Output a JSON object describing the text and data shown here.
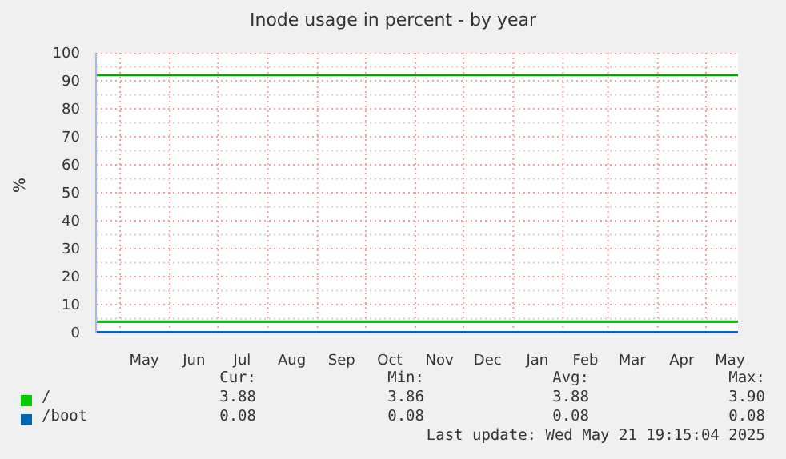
{
  "chart_data": {
    "type": "line",
    "title": "Inode usage in percent - by year",
    "ylabel": "%",
    "x": [
      "2024-04-16",
      "2025-05-21"
    ],
    "series": [
      {
        "name": "/",
        "color": "#00cc00",
        "values": [
          3.88,
          3.88
        ]
      },
      {
        "name": "/boot",
        "color": "#0066b3",
        "values": [
          0.08,
          0.08
        ]
      }
    ],
    "xlim": [
      "2024-04-16",
      "2025-05-21"
    ],
    "xticks": [
      {
        "value": "2024-05-01",
        "label": null
      },
      {
        "value": "2024-05-16",
        "label": "May"
      },
      {
        "value": "2024-06-01",
        "label": null
      },
      {
        "value": "2024-06-16",
        "label": "Jun"
      },
      {
        "value": "2024-07-01",
        "label": null
      },
      {
        "value": "2024-07-16",
        "label": "Jul"
      },
      {
        "value": "2024-08-01",
        "label": null
      },
      {
        "value": "2024-08-16",
        "label": "Aug"
      },
      {
        "value": "2024-09-01",
        "label": null
      },
      {
        "value": "2024-09-16",
        "label": "Sep"
      },
      {
        "value": "2024-10-01",
        "label": null
      },
      {
        "value": "2024-10-16",
        "label": "Oct"
      },
      {
        "value": "2024-11-01",
        "label": null
      },
      {
        "value": "2024-11-16",
        "label": "Nov"
      },
      {
        "value": "2024-12-01",
        "label": null
      },
      {
        "value": "2024-12-16",
        "label": "Dec"
      },
      {
        "value": "2025-01-01",
        "label": null
      },
      {
        "value": "2025-01-16",
        "label": "Jan"
      },
      {
        "value": "2025-02-01",
        "label": null
      },
      {
        "value": "2025-02-15",
        "label": "Feb"
      },
      {
        "value": "2025-03-01",
        "label": null
      },
      {
        "value": "2025-03-16",
        "label": "Mar"
      },
      {
        "value": "2025-04-01",
        "label": null
      },
      {
        "value": "2025-04-16",
        "label": "Apr"
      },
      {
        "value": "2025-05-01",
        "label": null
      },
      {
        "value": "2025-05-16",
        "label": "May"
      }
    ],
    "ylim": [
      0,
      100
    ],
    "yticks": [
      0,
      {
        "value": 5,
        "label": null
      },
      10,
      {
        "value": 15,
        "label": null
      },
      20,
      {
        "value": 25,
        "label": null
      },
      30,
      {
        "value": 35,
        "label": null
      },
      40,
      {
        "value": 45,
        "label": null
      },
      50,
      {
        "value": 55,
        "label": null
      },
      60,
      {
        "value": 65,
        "label": null
      },
      70,
      {
        "value": 75,
        "label": null
      },
      80,
      {
        "value": 85,
        "label": null
      },
      90,
      {
        "value": 95,
        "label": null
      },
      100
    ],
    "ref_lines": [
      {
        "axis": "y",
        "value": 92,
        "color": "#00aa00"
      }
    ],
    "grid": true,
    "legend": "bottom",
    "marker": "none",
    "line_style": "solid",
    "annotations": [
      "Cur:",
      "Min:",
      "Avg:",
      "Max:",
      "3.88",
      "3.86",
      "3.88",
      "3.90",
      "0.08",
      "0.08",
      "0.08",
      "0.08",
      "Last update: Wed May 21 19:15:04 2025"
    ]
  }
}
